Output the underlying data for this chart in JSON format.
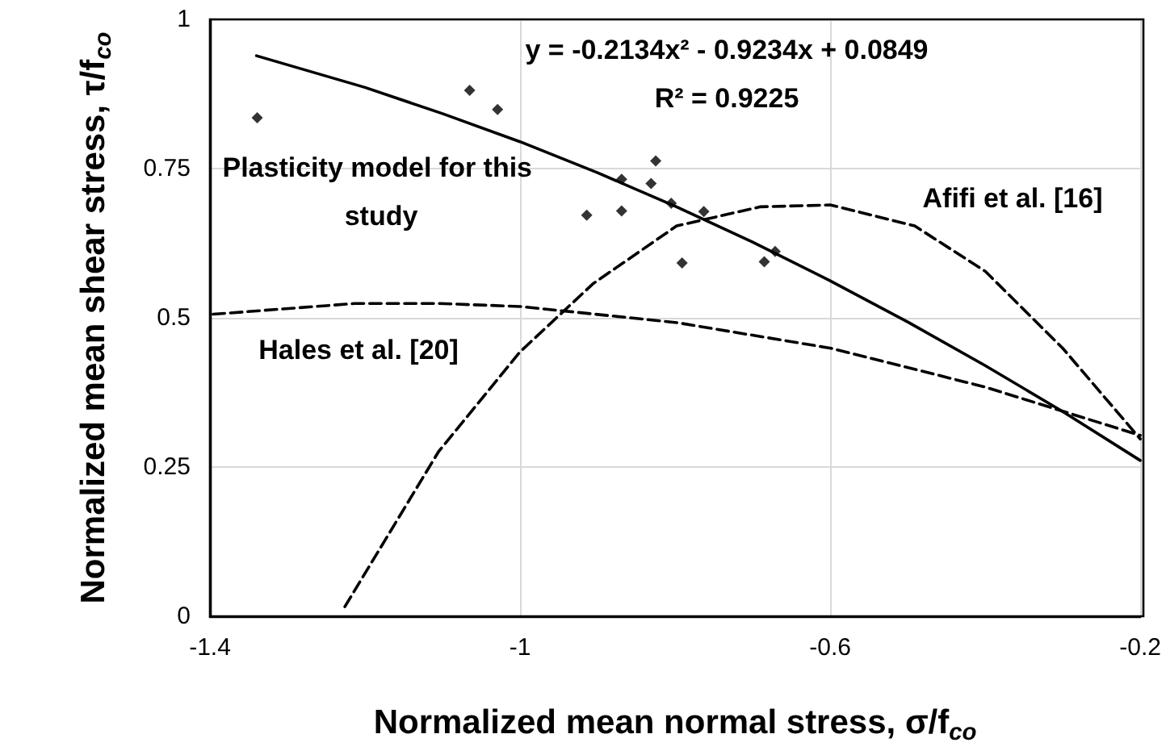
{
  "chart_data": {
    "type": "scatter",
    "xlabel": "Normalized mean normal stress, σ/f$_{co}$",
    "ylabel": "Normalized mean shear stress, τ/f$_{co}$",
    "xlim": [
      -1.4,
      -0.2
    ],
    "xticks": [
      -1.4,
      -1,
      -0.6,
      -0.2
    ],
    "ylim": [
      0,
      1
    ],
    "yticks": [
      0,
      0.25,
      0.5,
      0.75,
      1
    ],
    "grid": true,
    "series": [
      {
        "color": "#000000",
        "marker": "diamond",
        "x": [
          -1.339,
          -1.065,
          -1.029,
          -0.914,
          -0.869,
          -0.869,
          -0.831,
          -0.825,
          -0.805,
          -0.791,
          -0.763,
          -0.685,
          -0.671
        ],
        "values": [
          0.835,
          0.881,
          0.849,
          0.672,
          0.732,
          0.679,
          0.725,
          0.763,
          0.692,
          0.592,
          0.678,
          0.594,
          0.611
        ]
      },
      {
        "type": "line",
        "color": "#000000",
        "marker": "none",
        "line_style": "solid",
        "x": [
          -1.34,
          -1.2,
          -1.1,
          -1.0,
          -0.9,
          -0.8,
          -0.7,
          -0.6,
          -0.5,
          -0.4,
          -0.3,
          -0.2
        ],
        "values": [
          0.939,
          0.886,
          0.842,
          0.795,
          0.743,
          0.687,
          0.627,
          0.562,
          0.493,
          0.42,
          0.343,
          0.261
        ]
      },
      {
        "type": "line",
        "color": "#000000",
        "marker": "none",
        "line_style": "dashed",
        "x": [
          -1.226,
          -1.105,
          -1.0,
          -0.906,
          -0.798,
          -0.69,
          -0.599,
          -0.491,
          -0.4,
          -0.3,
          -0.2
        ],
        "values": [
          0.016,
          0.276,
          0.443,
          0.557,
          0.654,
          0.686,
          0.689,
          0.654,
          0.578,
          0.449,
          0.297
        ]
      },
      {
        "type": "line",
        "color": "#000000",
        "marker": "none",
        "line_style": "dashed",
        "x": [
          -1.396,
          -1.213,
          -1.105,
          -1.0,
          -0.798,
          -0.599,
          -0.4,
          -0.2
        ],
        "values": [
          0.506,
          0.524,
          0.524,
          0.519,
          0.492,
          0.449,
          0.384,
          0.303
        ]
      }
    ],
    "annotations": [
      "y = -0.2134x² - 0.9234x + 0.0849",
      "R² = 0.9225",
      "Plasticity model for this study",
      "Afifi et al. [16]",
      "Hales et al. [20]"
    ]
  }
}
